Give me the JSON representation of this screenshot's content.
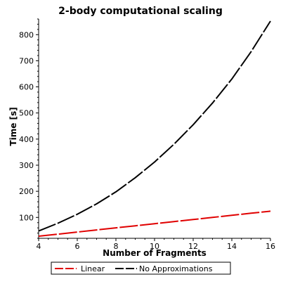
{
  "chart_data": {
    "type": "line",
    "title": "2-body computational scaling",
    "xlabel": "Number of Fragments",
    "ylabel": "Time [s]",
    "xlim": [
      4,
      16
    ],
    "ylim": [
      20,
      860
    ],
    "x_ticks": [
      4,
      6,
      8,
      10,
      12,
      14,
      16
    ],
    "y_ticks": [
      100,
      200,
      300,
      400,
      500,
      600,
      700,
      800
    ],
    "legend_position": "bottom",
    "grid": false,
    "series": [
      {
        "name": "Linear",
        "color": "#e00000",
        "style": "dashed",
        "x": [
          4,
          5,
          6,
          7,
          8,
          9,
          10,
          11,
          12,
          13,
          14,
          15,
          16
        ],
        "y": [
          28,
          36,
          44,
          52,
          60,
          68,
          76,
          84,
          92,
          100,
          108,
          116,
          124
        ]
      },
      {
        "name": "No Approximations",
        "color": "#000000",
        "style": "dashed",
        "x": [
          4,
          5,
          6,
          7,
          8,
          9,
          10,
          11,
          12,
          13,
          14,
          15,
          16
        ],
        "y": [
          48,
          78,
          112,
          152,
          198,
          252,
          312,
          380,
          455,
          538,
          630,
          735,
          852
        ]
      }
    ]
  }
}
